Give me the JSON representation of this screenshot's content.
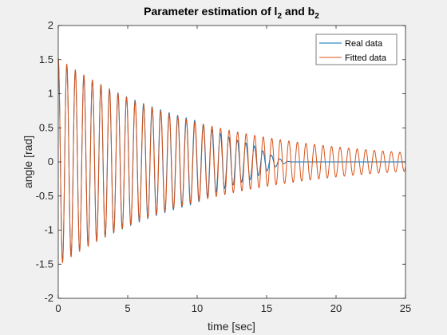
{
  "chart_data": {
    "type": "line",
    "title": "Parameter estimation of l",
    "title_parts": {
      "prefix": "Parameter estimation of l",
      "sub1": "2",
      "middle": " and b",
      "sub2": "2"
    },
    "xlabel": "time [sec]",
    "ylabel": "angle [rad]",
    "xlim": [
      0,
      25
    ],
    "ylim": [
      -2,
      2
    ],
    "xticks": [
      0,
      5,
      10,
      15,
      20,
      25
    ],
    "yticks": [
      -2,
      -1.5,
      -1,
      -0.5,
      0,
      0.5,
      1,
      1.5,
      2
    ],
    "xtick_labels": [
      "0",
      "5",
      "10",
      "15",
      "20",
      "25"
    ],
    "ytick_labels": [
      "-2",
      "-1.5",
      "-1",
      "-0.5",
      "0",
      "0.5",
      "1",
      "1.5",
      "2"
    ],
    "grid": false,
    "legend_position": "top-right",
    "series": [
      {
        "name": "Real data",
        "color": "#0072BD",
        "model": "damped_cosine_with_decay_to_zero",
        "amplitude_start": 1.5,
        "period_sec": 0.615,
        "amplitude_at_10s": 0.6,
        "amplitude_at_14s": 0.25,
        "vanishes_at_sec": 16.8
      },
      {
        "name": "Fitted data",
        "color": "#D95319",
        "model": "exponentially_damped_cosine",
        "amplitude_start": 1.52,
        "period_sec": 0.615,
        "amplitude_at_10s": 0.58,
        "amplitude_at_20s": 0.23,
        "amplitude_at_25s": 0.13
      }
    ]
  }
}
